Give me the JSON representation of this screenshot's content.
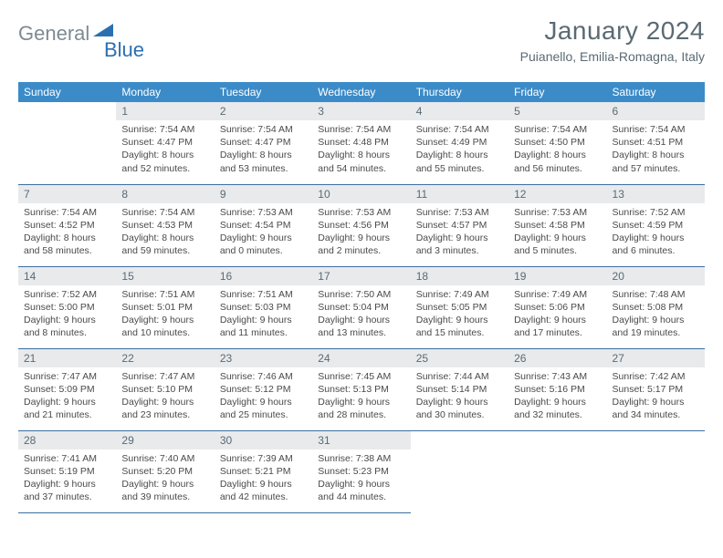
{
  "brand": {
    "part1": "General",
    "part2": "Blue"
  },
  "title": "January 2024",
  "location": "Puianello, Emilia-Romagna, Italy",
  "colors": {
    "header_bg": "#3b8bc8",
    "header_text": "#ffffff",
    "daynum_bg": "#e8eaec",
    "cell_border": "#3b6fa0",
    "title_color": "#5a6a74",
    "brand_gray": "#7e8a93",
    "brand_blue": "#2c6fb0",
    "body_text": "#4a4a4a",
    "page_bg": "#ffffff"
  },
  "weekdays": [
    "Sunday",
    "Monday",
    "Tuesday",
    "Wednesday",
    "Thursday",
    "Friday",
    "Saturday"
  ],
  "weeks": [
    [
      {
        "day": "",
        "sunrise": "",
        "sunset": "",
        "daylight": ""
      },
      {
        "day": "1",
        "sunrise": "Sunrise: 7:54 AM",
        "sunset": "Sunset: 4:47 PM",
        "daylight": "Daylight: 8 hours and 52 minutes."
      },
      {
        "day": "2",
        "sunrise": "Sunrise: 7:54 AM",
        "sunset": "Sunset: 4:47 PM",
        "daylight": "Daylight: 8 hours and 53 minutes."
      },
      {
        "day": "3",
        "sunrise": "Sunrise: 7:54 AM",
        "sunset": "Sunset: 4:48 PM",
        "daylight": "Daylight: 8 hours and 54 minutes."
      },
      {
        "day": "4",
        "sunrise": "Sunrise: 7:54 AM",
        "sunset": "Sunset: 4:49 PM",
        "daylight": "Daylight: 8 hours and 55 minutes."
      },
      {
        "day": "5",
        "sunrise": "Sunrise: 7:54 AM",
        "sunset": "Sunset: 4:50 PM",
        "daylight": "Daylight: 8 hours and 56 minutes."
      },
      {
        "day": "6",
        "sunrise": "Sunrise: 7:54 AM",
        "sunset": "Sunset: 4:51 PM",
        "daylight": "Daylight: 8 hours and 57 minutes."
      }
    ],
    [
      {
        "day": "7",
        "sunrise": "Sunrise: 7:54 AM",
        "sunset": "Sunset: 4:52 PM",
        "daylight": "Daylight: 8 hours and 58 minutes."
      },
      {
        "day": "8",
        "sunrise": "Sunrise: 7:54 AM",
        "sunset": "Sunset: 4:53 PM",
        "daylight": "Daylight: 8 hours and 59 minutes."
      },
      {
        "day": "9",
        "sunrise": "Sunrise: 7:53 AM",
        "sunset": "Sunset: 4:54 PM",
        "daylight": "Daylight: 9 hours and 0 minutes."
      },
      {
        "day": "10",
        "sunrise": "Sunrise: 7:53 AM",
        "sunset": "Sunset: 4:56 PM",
        "daylight": "Daylight: 9 hours and 2 minutes."
      },
      {
        "day": "11",
        "sunrise": "Sunrise: 7:53 AM",
        "sunset": "Sunset: 4:57 PM",
        "daylight": "Daylight: 9 hours and 3 minutes."
      },
      {
        "day": "12",
        "sunrise": "Sunrise: 7:53 AM",
        "sunset": "Sunset: 4:58 PM",
        "daylight": "Daylight: 9 hours and 5 minutes."
      },
      {
        "day": "13",
        "sunrise": "Sunrise: 7:52 AM",
        "sunset": "Sunset: 4:59 PM",
        "daylight": "Daylight: 9 hours and 6 minutes."
      }
    ],
    [
      {
        "day": "14",
        "sunrise": "Sunrise: 7:52 AM",
        "sunset": "Sunset: 5:00 PM",
        "daylight": "Daylight: 9 hours and 8 minutes."
      },
      {
        "day": "15",
        "sunrise": "Sunrise: 7:51 AM",
        "sunset": "Sunset: 5:01 PM",
        "daylight": "Daylight: 9 hours and 10 minutes."
      },
      {
        "day": "16",
        "sunrise": "Sunrise: 7:51 AM",
        "sunset": "Sunset: 5:03 PM",
        "daylight": "Daylight: 9 hours and 11 minutes."
      },
      {
        "day": "17",
        "sunrise": "Sunrise: 7:50 AM",
        "sunset": "Sunset: 5:04 PM",
        "daylight": "Daylight: 9 hours and 13 minutes."
      },
      {
        "day": "18",
        "sunrise": "Sunrise: 7:49 AM",
        "sunset": "Sunset: 5:05 PM",
        "daylight": "Daylight: 9 hours and 15 minutes."
      },
      {
        "day": "19",
        "sunrise": "Sunrise: 7:49 AM",
        "sunset": "Sunset: 5:06 PM",
        "daylight": "Daylight: 9 hours and 17 minutes."
      },
      {
        "day": "20",
        "sunrise": "Sunrise: 7:48 AM",
        "sunset": "Sunset: 5:08 PM",
        "daylight": "Daylight: 9 hours and 19 minutes."
      }
    ],
    [
      {
        "day": "21",
        "sunrise": "Sunrise: 7:47 AM",
        "sunset": "Sunset: 5:09 PM",
        "daylight": "Daylight: 9 hours and 21 minutes."
      },
      {
        "day": "22",
        "sunrise": "Sunrise: 7:47 AM",
        "sunset": "Sunset: 5:10 PM",
        "daylight": "Daylight: 9 hours and 23 minutes."
      },
      {
        "day": "23",
        "sunrise": "Sunrise: 7:46 AM",
        "sunset": "Sunset: 5:12 PM",
        "daylight": "Daylight: 9 hours and 25 minutes."
      },
      {
        "day": "24",
        "sunrise": "Sunrise: 7:45 AM",
        "sunset": "Sunset: 5:13 PM",
        "daylight": "Daylight: 9 hours and 28 minutes."
      },
      {
        "day": "25",
        "sunrise": "Sunrise: 7:44 AM",
        "sunset": "Sunset: 5:14 PM",
        "daylight": "Daylight: 9 hours and 30 minutes."
      },
      {
        "day": "26",
        "sunrise": "Sunrise: 7:43 AM",
        "sunset": "Sunset: 5:16 PM",
        "daylight": "Daylight: 9 hours and 32 minutes."
      },
      {
        "day": "27",
        "sunrise": "Sunrise: 7:42 AM",
        "sunset": "Sunset: 5:17 PM",
        "daylight": "Daylight: 9 hours and 34 minutes."
      }
    ],
    [
      {
        "day": "28",
        "sunrise": "Sunrise: 7:41 AM",
        "sunset": "Sunset: 5:19 PM",
        "daylight": "Daylight: 9 hours and 37 minutes."
      },
      {
        "day": "29",
        "sunrise": "Sunrise: 7:40 AM",
        "sunset": "Sunset: 5:20 PM",
        "daylight": "Daylight: 9 hours and 39 minutes."
      },
      {
        "day": "30",
        "sunrise": "Sunrise: 7:39 AM",
        "sunset": "Sunset: 5:21 PM",
        "daylight": "Daylight: 9 hours and 42 minutes."
      },
      {
        "day": "31",
        "sunrise": "Sunrise: 7:38 AM",
        "sunset": "Sunset: 5:23 PM",
        "daylight": "Daylight: 9 hours and 44 minutes."
      },
      {
        "day": "",
        "sunrise": "",
        "sunset": "",
        "daylight": ""
      },
      {
        "day": "",
        "sunrise": "",
        "sunset": "",
        "daylight": ""
      },
      {
        "day": "",
        "sunrise": "",
        "sunset": "",
        "daylight": ""
      }
    ]
  ]
}
